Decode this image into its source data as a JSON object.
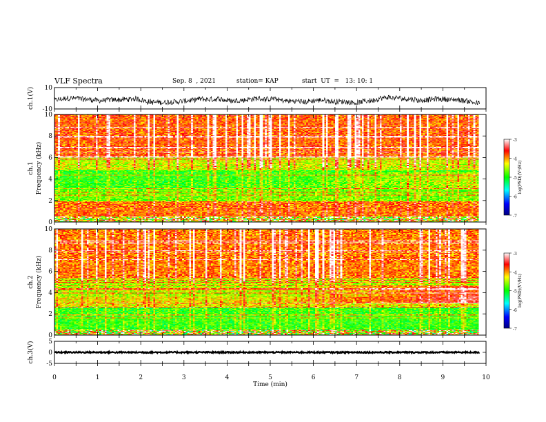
{
  "header": {
    "title": "VLF Spectra",
    "date": "Sep. 8  , 2021",
    "station": "station= KAP",
    "start": "start  UT  =   13: 10: 1"
  },
  "chart_data": [
    {
      "type": "line",
      "panel": "ch1-waveform",
      "ylabel": "ch.1(V)",
      "ylim": [
        -10,
        10
      ],
      "y_ticks": [
        "10",
        "-10"
      ],
      "xlim": [
        0,
        10
      ],
      "data_extent_min": 9.85,
      "approx_range": [
        -6,
        3
      ],
      "line_color": "#000000"
    },
    {
      "type": "heatmap",
      "panel": "ch1-spectrogram",
      "ylabel": "ch.1\nFrequency (kHz)",
      "ylabel_lines": [
        "ch.1",
        "Frequency (kHz)"
      ],
      "ylim": [
        0,
        10
      ],
      "y_ticks": [
        "0",
        "2",
        "4",
        "6",
        "8",
        "10"
      ],
      "xlim": [
        0,
        10
      ],
      "data_extent_min": 9.85,
      "colorbar": {
        "label": "log(PSD)(V²/Hz)",
        "range": [
          -7,
          -3
        ],
        "ticks": [
          "-3",
          "-4",
          "-5",
          "-6",
          "-7"
        ],
        "colors": [
          "#000080",
          "#0000ff",
          "#00ffff",
          "#00ff00",
          "#ffff00",
          "#ff0000",
          "#ffffff"
        ]
      },
      "bands": [
        {
          "f": [
            0,
            0.4
          ],
          "level": -4.3
        },
        {
          "f": [
            0.4,
            1.9
          ],
          "level": -3.9
        },
        {
          "f": [
            1.9,
            3.0
          ],
          "level": -4.7
        },
        {
          "f": [
            3.0,
            4.8
          ],
          "level": -4.9
        },
        {
          "f": [
            4.8,
            6.0
          ],
          "level": -4.4
        },
        {
          "f": [
            6.0,
            10.0
          ],
          "level": -3.8
        }
      ]
    },
    {
      "type": "heatmap",
      "panel": "ch2-spectrogram",
      "ylabel": "ch.2\nFrequency (kHz)",
      "ylabel_lines": [
        "ch.2",
        "Frequency (kHz)"
      ],
      "ylim": [
        0,
        10
      ],
      "y_ticks": [
        "0",
        "2",
        "4",
        "6",
        "8",
        "10"
      ],
      "xlim": [
        0,
        10
      ],
      "data_extent_min": 9.85,
      "colorbar": {
        "label": "log(PSD)(V²/Hz)",
        "range": [
          -7,
          -3
        ],
        "ticks": [
          "-3",
          "-4",
          "-5",
          "-6",
          "-7"
        ],
        "colors": [
          "#000080",
          "#0000ff",
          "#00ffff",
          "#00ff00",
          "#ffff00",
          "#ff0000",
          "#ffffff"
        ]
      },
      "bands": [
        {
          "f": [
            0,
            0.5
          ],
          "level": -4.2
        },
        {
          "f": [
            0.5,
            2.6
          ],
          "level": -4.9
        },
        {
          "f": [
            2.6,
            3.6
          ],
          "level": -4.3
        },
        {
          "f": [
            3.6,
            5.5
          ],
          "level": -4.5
        },
        {
          "f": [
            5.5,
            10.0
          ],
          "level": -3.9
        }
      ]
    },
    {
      "type": "line",
      "panel": "ch3-waveform",
      "ylabel": "ch.3(V)",
      "ylim": [
        -5,
        5
      ],
      "y_ticks": [
        "5",
        "0",
        "-5"
      ],
      "xlim": [
        0,
        10
      ],
      "x_ticks": [
        "0",
        "1",
        "2",
        "3",
        "4",
        "5",
        "6",
        "7",
        "8",
        "9",
        "10"
      ],
      "xlabel": "Time  (min)",
      "data_extent_min": 9.85,
      "approx_value": 0,
      "line_color": "#000000"
    }
  ]
}
